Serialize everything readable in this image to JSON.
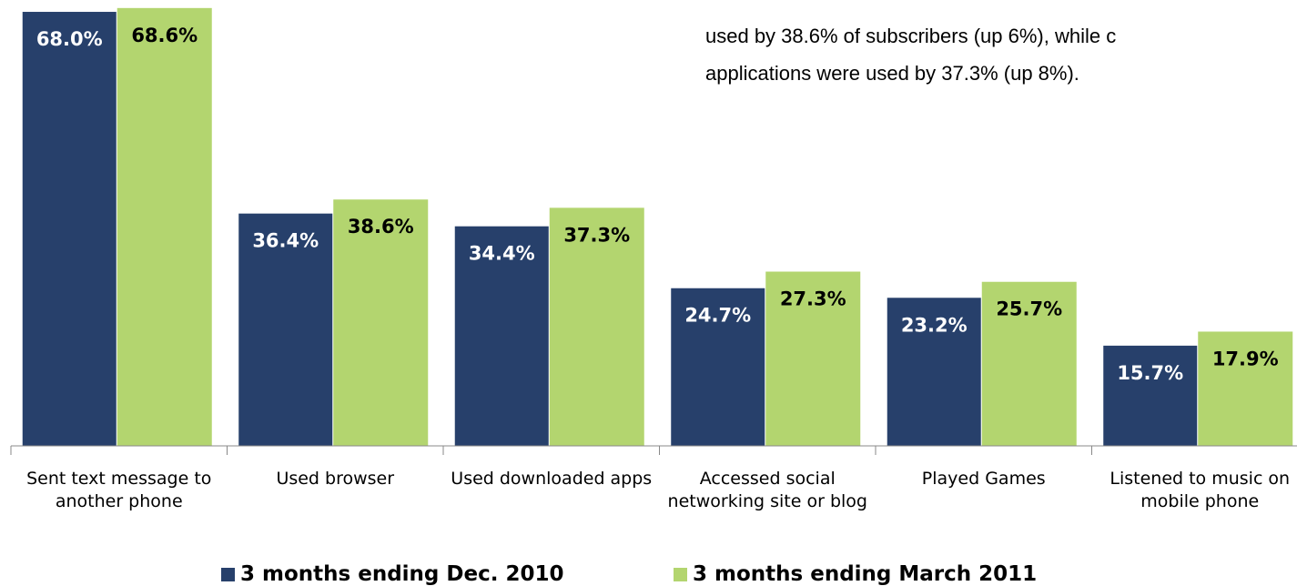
{
  "chart_data": {
    "type": "bar",
    "annotations": [
      "used by 38.6% of subscribers (up 6%), while c",
      "applications were used by 37.3% (up 8%)."
    ],
    "categories": [
      "Sent text message to another phone",
      "Used browser",
      "Used downloaded apps",
      "Accessed social networking site or blog",
      "Played Games",
      "Listened to music on mobile phone"
    ],
    "series": [
      {
        "name": "3 months ending Dec. 2010",
        "color": "#27406b",
        "values": [
          68.0,
          36.4,
          34.4,
          24.7,
          23.2,
          15.7
        ],
        "value_labels": [
          "68.0%",
          "36.4%",
          "34.4%",
          "24.7%",
          "23.2%",
          "15.7%"
        ]
      },
      {
        "name": "3 months ending March 2011",
        "color": "#b3d56f",
        "values": [
          68.6,
          38.6,
          37.3,
          27.3,
          25.7,
          17.9
        ],
        "value_labels": [
          "68.6%",
          "38.6%",
          "37.3%",
          "27.3%",
          "25.7%",
          "17.9%"
        ]
      }
    ],
    "ylim": [
      0,
      70
    ]
  }
}
